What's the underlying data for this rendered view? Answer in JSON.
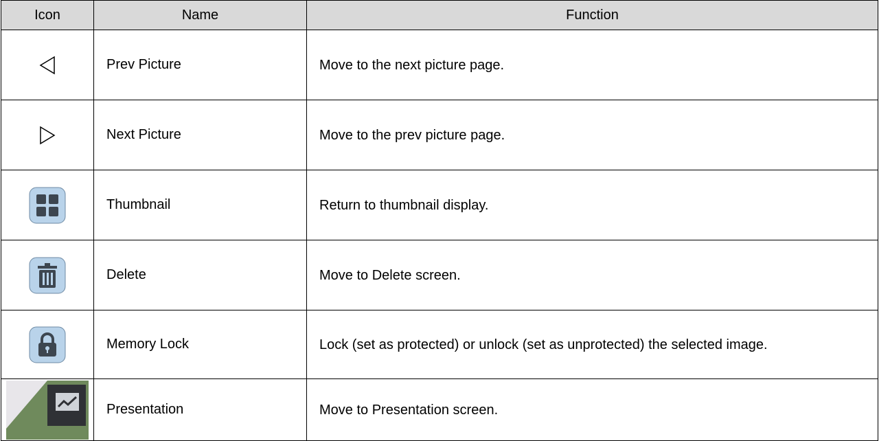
{
  "table": {
    "header": [
      "Icon",
      "Name",
      "Function"
    ],
    "rows": [
      [
        "Prev Picture",
        "Move to the next picture page."
      ],
      [
        "Next Picture",
        "Move to the prev picture page."
      ],
      [
        "Thumbnail",
        "Return to thumbnail display."
      ],
      [
        "Delete",
        "Move to Delete screen."
      ],
      [
        "Memory Lock",
        "Lock (set as protected) or unlock (set as unprotected) the selected image."
      ],
      [
        "Presentation",
        "Move to Presentation screen."
      ]
    ]
  }
}
